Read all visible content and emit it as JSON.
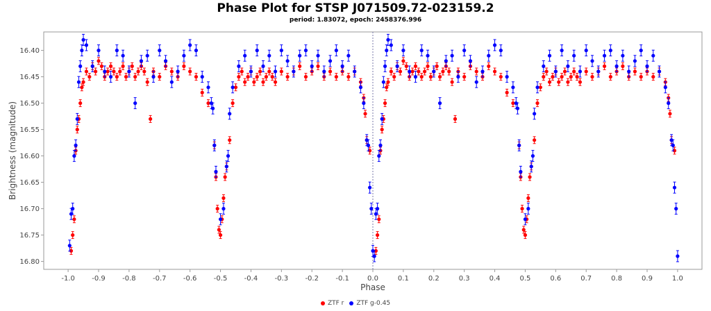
{
  "chart_data": {
    "type": "scatter",
    "title": "Phase Plot for STSP J071509.72-023159.2",
    "subtitle": "period: 1.83072, epoch: 2458376.996",
    "xlabel": "Phase",
    "ylabel": "Brightness (magnitude)",
    "xlim": [
      -1.08,
      1.08
    ],
    "ylim": [
      16.815,
      16.365
    ],
    "y_inverted": true,
    "x_ticks": [
      "-1.0",
      "-0.9",
      "-0.8",
      "-0.7",
      "-0.6",
      "-0.5",
      "-0.4",
      "-0.3",
      "-0.2",
      "-0.1",
      "0.0",
      "0.1",
      "0.2",
      "0.3",
      "0.4",
      "0.5",
      "0.6",
      "0.7",
      "0.8",
      "0.9",
      "1.0"
    ],
    "y_ticks": [
      "16.40",
      "16.45",
      "16.50",
      "16.55",
      "16.60",
      "16.65",
      "16.70",
      "16.75",
      "16.80"
    ],
    "reference_line_x": 0.0,
    "legend_position": "bottom",
    "series": [
      {
        "name": "ZTF r",
        "color": "#ff0000",
        "points": [
          [
            -0.99,
            16.78
          ],
          [
            -0.985,
            16.75
          ],
          [
            -0.98,
            16.72
          ],
          [
            -0.975,
            16.59
          ],
          [
            -0.97,
            16.55
          ],
          [
            -0.965,
            16.53
          ],
          [
            -0.96,
            16.5
          ],
          [
            -0.955,
            16.47
          ],
          [
            -0.95,
            16.46
          ],
          [
            -0.94,
            16.44
          ],
          [
            -0.93,
            16.45
          ],
          [
            -0.92,
            16.43
          ],
          [
            -0.91,
            16.44
          ],
          [
            -0.9,
            16.42
          ],
          [
            -0.89,
            16.43
          ],
          [
            -0.88,
            16.45
          ],
          [
            -0.87,
            16.44
          ],
          [
            -0.86,
            16.43
          ],
          [
            -0.85,
            16.44
          ],
          [
            -0.84,
            16.45
          ],
          [
            -0.83,
            16.44
          ],
          [
            -0.82,
            16.43
          ],
          [
            -0.81,
            16.45
          ],
          [
            -0.8,
            16.44
          ],
          [
            -0.79,
            16.43
          ],
          [
            -0.78,
            16.45
          ],
          [
            -0.77,
            16.44
          ],
          [
            -0.76,
            16.43
          ],
          [
            -0.75,
            16.44
          ],
          [
            -0.74,
            16.46
          ],
          [
            -0.73,
            16.53
          ],
          [
            -0.72,
            16.44
          ],
          [
            -0.7,
            16.45
          ],
          [
            -0.68,
            16.43
          ],
          [
            -0.66,
            16.44
          ],
          [
            -0.64,
            16.45
          ],
          [
            -0.62,
            16.43
          ],
          [
            -0.6,
            16.44
          ],
          [
            -0.58,
            16.45
          ],
          [
            -0.56,
            16.48
          ],
          [
            -0.54,
            16.5
          ],
          [
            -0.52,
            16.58
          ],
          [
            -0.515,
            16.64
          ],
          [
            -0.51,
            16.7
          ],
          [
            -0.505,
            16.74
          ],
          [
            -0.5,
            16.75
          ],
          [
            -0.495,
            16.72
          ],
          [
            -0.49,
            16.68
          ],
          [
            -0.485,
            16.64
          ],
          [
            -0.48,
            16.62
          ],
          [
            -0.47,
            16.57
          ],
          [
            -0.46,
            16.5
          ],
          [
            -0.45,
            16.47
          ],
          [
            -0.44,
            16.45
          ],
          [
            -0.43,
            16.44
          ],
          [
            -0.42,
            16.46
          ],
          [
            -0.41,
            16.45
          ],
          [
            -0.4,
            16.44
          ],
          [
            -0.39,
            16.46
          ],
          [
            -0.38,
            16.45
          ],
          [
            -0.37,
            16.44
          ],
          [
            -0.36,
            16.46
          ],
          [
            -0.35,
            16.45
          ],
          [
            -0.34,
            16.44
          ],
          [
            -0.33,
            16.45
          ],
          [
            -0.32,
            16.46
          ],
          [
            -0.3,
            16.44
          ],
          [
            -0.28,
            16.45
          ],
          [
            -0.26,
            16.44
          ],
          [
            -0.24,
            16.43
          ],
          [
            -0.22,
            16.45
          ],
          [
            -0.2,
            16.44
          ],
          [
            -0.18,
            16.43
          ],
          [
            -0.16,
            16.45
          ],
          [
            -0.14,
            16.44
          ],
          [
            -0.12,
            16.45
          ],
          [
            -0.1,
            16.44
          ],
          [
            -0.08,
            16.45
          ],
          [
            -0.06,
            16.44
          ],
          [
            -0.04,
            16.46
          ],
          [
            -0.03,
            16.49
          ],
          [
            -0.025,
            16.52
          ],
          [
            -0.02,
            16.57
          ],
          [
            -0.01,
            16.59
          ],
          [
            0.01,
            16.78
          ],
          [
            0.015,
            16.75
          ],
          [
            0.02,
            16.72
          ],
          [
            0.025,
            16.59
          ],
          [
            0.03,
            16.55
          ],
          [
            0.035,
            16.53
          ],
          [
            0.04,
            16.5
          ],
          [
            0.045,
            16.47
          ],
          [
            0.05,
            16.46
          ],
          [
            0.06,
            16.44
          ],
          [
            0.07,
            16.45
          ],
          [
            0.08,
            16.43
          ],
          [
            0.09,
            16.44
          ],
          [
            0.1,
            16.42
          ],
          [
            0.11,
            16.43
          ],
          [
            0.12,
            16.45
          ],
          [
            0.13,
            16.44
          ],
          [
            0.14,
            16.43
          ],
          [
            0.15,
            16.44
          ],
          [
            0.16,
            16.45
          ],
          [
            0.17,
            16.44
          ],
          [
            0.18,
            16.43
          ],
          [
            0.19,
            16.45
          ],
          [
            0.2,
            16.44
          ],
          [
            0.21,
            16.43
          ],
          [
            0.22,
            16.45
          ],
          [
            0.23,
            16.44
          ],
          [
            0.24,
            16.43
          ],
          [
            0.25,
            16.44
          ],
          [
            0.26,
            16.46
          ],
          [
            0.27,
            16.53
          ],
          [
            0.28,
            16.44
          ],
          [
            0.3,
            16.45
          ],
          [
            0.32,
            16.43
          ],
          [
            0.34,
            16.44
          ],
          [
            0.36,
            16.45
          ],
          [
            0.38,
            16.43
          ],
          [
            0.4,
            16.44
          ],
          [
            0.42,
            16.45
          ],
          [
            0.44,
            16.48
          ],
          [
            0.46,
            16.5
          ],
          [
            0.48,
            16.58
          ],
          [
            0.485,
            16.64
          ],
          [
            0.49,
            16.7
          ],
          [
            0.495,
            16.74
          ],
          [
            0.5,
            16.75
          ],
          [
            0.505,
            16.72
          ],
          [
            0.51,
            16.68
          ],
          [
            0.515,
            16.64
          ],
          [
            0.52,
            16.62
          ],
          [
            0.53,
            16.57
          ],
          [
            0.54,
            16.5
          ],
          [
            0.55,
            16.47
          ],
          [
            0.56,
            16.45
          ],
          [
            0.57,
            16.44
          ],
          [
            0.58,
            16.46
          ],
          [
            0.59,
            16.45
          ],
          [
            0.6,
            16.44
          ],
          [
            0.61,
            16.46
          ],
          [
            0.62,
            16.45
          ],
          [
            0.63,
            16.44
          ],
          [
            0.64,
            16.46
          ],
          [
            0.65,
            16.45
          ],
          [
            0.66,
            16.44
          ],
          [
            0.67,
            16.45
          ],
          [
            0.68,
            16.46
          ],
          [
            0.7,
            16.44
          ],
          [
            0.72,
            16.45
          ],
          [
            0.74,
            16.44
          ],
          [
            0.76,
            16.43
          ],
          [
            0.78,
            16.45
          ],
          [
            0.8,
            16.44
          ],
          [
            0.82,
            16.43
          ],
          [
            0.84,
            16.45
          ],
          [
            0.86,
            16.44
          ],
          [
            0.88,
            16.45
          ],
          [
            0.9,
            16.44
          ],
          [
            0.92,
            16.45
          ],
          [
            0.94,
            16.44
          ],
          [
            0.96,
            16.46
          ],
          [
            0.97,
            16.49
          ],
          [
            0.975,
            16.52
          ],
          [
            0.98,
            16.57
          ],
          [
            0.99,
            16.59
          ]
        ]
      },
      {
        "name": "ZTF g-0.45",
        "color": "#0000ff",
        "points": [
          [
            -0.995,
            16.77
          ],
          [
            -0.99,
            16.71
          ],
          [
            -0.985,
            16.7
          ],
          [
            -0.98,
            16.6
          ],
          [
            -0.975,
            16.58
          ],
          [
            -0.97,
            16.53
          ],
          [
            -0.965,
            16.46
          ],
          [
            -0.96,
            16.43
          ],
          [
            -0.955,
            16.4
          ],
          [
            -0.95,
            16.38
          ],
          [
            -0.94,
            16.39
          ],
          [
            -0.92,
            16.43
          ],
          [
            -0.9,
            16.4
          ],
          [
            -0.88,
            16.44
          ],
          [
            -0.86,
            16.45
          ],
          [
            -0.84,
            16.4
          ],
          [
            -0.82,
            16.41
          ],
          [
            -0.8,
            16.44
          ],
          [
            -0.78,
            16.5
          ],
          [
            -0.76,
            16.42
          ],
          [
            -0.74,
            16.41
          ],
          [
            -0.72,
            16.45
          ],
          [
            -0.7,
            16.4
          ],
          [
            -0.68,
            16.42
          ],
          [
            -0.66,
            16.46
          ],
          [
            -0.64,
            16.44
          ],
          [
            -0.62,
            16.41
          ],
          [
            -0.6,
            16.39
          ],
          [
            -0.58,
            16.4
          ],
          [
            -0.56,
            16.45
          ],
          [
            -0.54,
            16.47
          ],
          [
            -0.53,
            16.5
          ],
          [
            -0.525,
            16.51
          ],
          [
            -0.52,
            16.58
          ],
          [
            -0.515,
            16.63
          ],
          [
            -0.5,
            16.72
          ],
          [
            -0.49,
            16.7
          ],
          [
            -0.48,
            16.62
          ],
          [
            -0.475,
            16.6
          ],
          [
            -0.47,
            16.52
          ],
          [
            -0.46,
            16.47
          ],
          [
            -0.44,
            16.43
          ],
          [
            -0.42,
            16.41
          ],
          [
            -0.4,
            16.44
          ],
          [
            -0.38,
            16.4
          ],
          [
            -0.36,
            16.43
          ],
          [
            -0.34,
            16.41
          ],
          [
            -0.32,
            16.44
          ],
          [
            -0.3,
            16.4
          ],
          [
            -0.28,
            16.42
          ],
          [
            -0.26,
            16.44
          ],
          [
            -0.24,
            16.41
          ],
          [
            -0.22,
            16.4
          ],
          [
            -0.2,
            16.43
          ],
          [
            -0.18,
            16.41
          ],
          [
            -0.16,
            16.44
          ],
          [
            -0.14,
            16.42
          ],
          [
            -0.12,
            16.4
          ],
          [
            -0.1,
            16.43
          ],
          [
            -0.08,
            16.41
          ],
          [
            -0.06,
            16.44
          ],
          [
            -0.04,
            16.47
          ],
          [
            -0.03,
            16.5
          ],
          [
            -0.02,
            16.57
          ],
          [
            -0.015,
            16.58
          ],
          [
            -0.01,
            16.66
          ],
          [
            -0.005,
            16.7
          ],
          [
            0.0,
            16.78
          ],
          [
            0.005,
            16.79
          ],
          [
            0.01,
            16.71
          ],
          [
            0.015,
            16.7
          ],
          [
            0.02,
            16.6
          ],
          [
            0.025,
            16.58
          ],
          [
            0.03,
            16.53
          ],
          [
            0.035,
            16.46
          ],
          [
            0.04,
            16.43
          ],
          [
            0.045,
            16.4
          ],
          [
            0.05,
            16.38
          ],
          [
            0.06,
            16.39
          ],
          [
            0.08,
            16.43
          ],
          [
            0.1,
            16.4
          ],
          [
            0.12,
            16.44
          ],
          [
            0.14,
            16.45
          ],
          [
            0.16,
            16.4
          ],
          [
            0.18,
            16.41
          ],
          [
            0.2,
            16.44
          ],
          [
            0.22,
            16.5
          ],
          [
            0.24,
            16.42
          ],
          [
            0.26,
            16.41
          ],
          [
            0.28,
            16.45
          ],
          [
            0.3,
            16.4
          ],
          [
            0.32,
            16.42
          ],
          [
            0.34,
            16.46
          ],
          [
            0.36,
            16.44
          ],
          [
            0.38,
            16.41
          ],
          [
            0.4,
            16.39
          ],
          [
            0.42,
            16.4
          ],
          [
            0.44,
            16.45
          ],
          [
            0.46,
            16.47
          ],
          [
            0.47,
            16.5
          ],
          [
            0.475,
            16.51
          ],
          [
            0.48,
            16.58
          ],
          [
            0.485,
            16.63
          ],
          [
            0.5,
            16.72
          ],
          [
            0.51,
            16.7
          ],
          [
            0.52,
            16.62
          ],
          [
            0.525,
            16.6
          ],
          [
            0.53,
            16.52
          ],
          [
            0.54,
            16.47
          ],
          [
            0.56,
            16.43
          ],
          [
            0.58,
            16.41
          ],
          [
            0.6,
            16.44
          ],
          [
            0.62,
            16.4
          ],
          [
            0.64,
            16.43
          ],
          [
            0.66,
            16.41
          ],
          [
            0.68,
            16.44
          ],
          [
            0.7,
            16.4
          ],
          [
            0.72,
            16.42
          ],
          [
            0.74,
            16.44
          ],
          [
            0.76,
            16.41
          ],
          [
            0.78,
            16.4
          ],
          [
            0.8,
            16.43
          ],
          [
            0.82,
            16.41
          ],
          [
            0.84,
            16.44
          ],
          [
            0.86,
            16.42
          ],
          [
            0.88,
            16.4
          ],
          [
            0.9,
            16.43
          ],
          [
            0.92,
            16.41
          ],
          [
            0.94,
            16.44
          ],
          [
            0.96,
            16.47
          ],
          [
            0.97,
            16.5
          ],
          [
            0.98,
            16.57
          ],
          [
            0.985,
            16.58
          ],
          [
            0.99,
            16.66
          ],
          [
            0.995,
            16.7
          ],
          [
            1.0,
            16.79
          ]
        ]
      }
    ]
  }
}
